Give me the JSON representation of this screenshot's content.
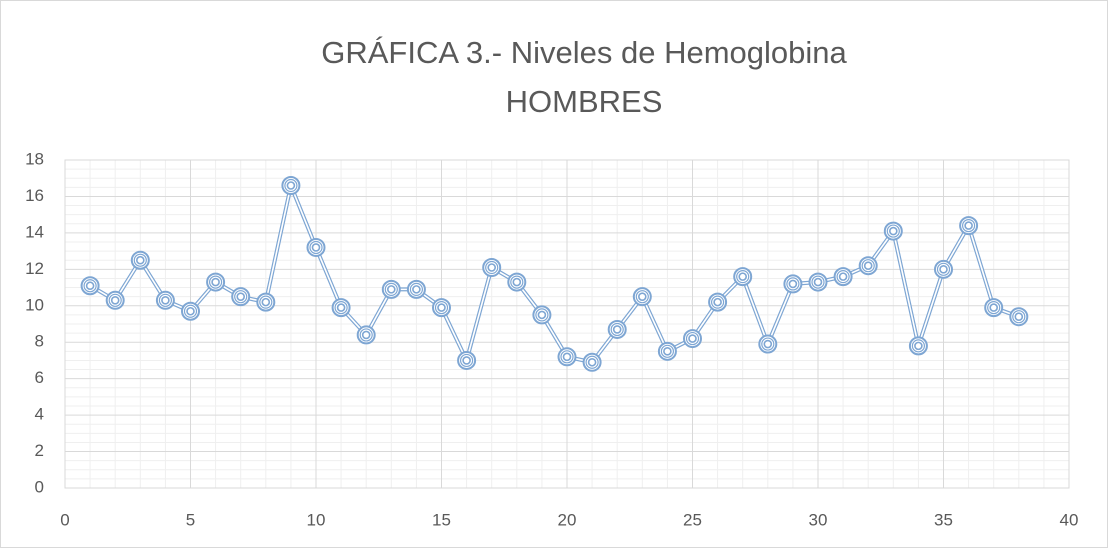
{
  "chart_data": {
    "type": "scatter-line",
    "title": "GRÁFICA 3.- Niveles de Hemoglobina",
    "subtitle": "HOMBRES",
    "x": [
      1,
      2,
      3,
      4,
      5,
      6,
      7,
      8,
      9,
      10,
      11,
      12,
      13,
      14,
      15,
      16,
      17,
      18,
      19,
      20,
      21,
      22,
      23,
      24,
      25,
      26,
      27,
      28,
      29,
      30,
      31,
      32,
      33,
      34,
      35,
      36,
      37,
      38
    ],
    "series": [
      {
        "color": "#7ea6d3",
        "values": [
          11.1,
          10.3,
          12.5,
          10.3,
          9.7,
          11.3,
          10.5,
          10.2,
          16.6,
          13.2,
          9.9,
          8.4,
          10.9,
          10.9,
          9.9,
          7.0,
          12.1,
          11.3,
          9.5,
          7.2,
          6.9,
          8.7,
          10.5,
          7.5,
          8.2,
          10.2,
          11.6,
          7.9,
          11.2,
          11.3,
          11.6,
          12.2,
          14.1,
          7.8,
          12.0,
          14.4,
          9.9,
          9.4
        ]
      }
    ],
    "xlim": [
      0,
      40
    ],
    "xticks": [
      0,
      5,
      10,
      15,
      20,
      25,
      30,
      35,
      40
    ],
    "ylim": [
      0,
      18
    ],
    "yticks": [
      0,
      2,
      4,
      6,
      8,
      10,
      12,
      14,
      16,
      18
    ],
    "grid": true,
    "minor_grid": true
  }
}
